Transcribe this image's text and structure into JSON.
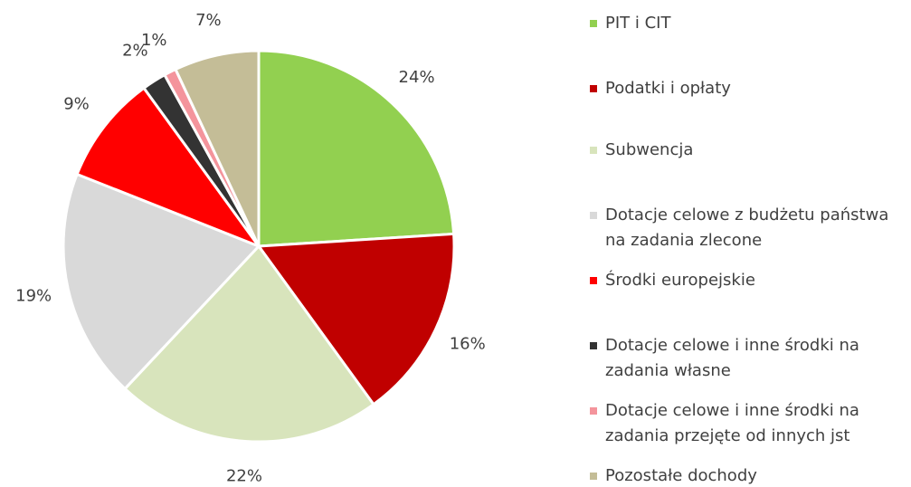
{
  "chart_data": {
    "type": "pie",
    "categories": [
      "PIT i CIT",
      "Podatki i opłaty",
      "Subwencja",
      "Dotacje celowe z budżetu państwa na zadania zlecone",
      "Środki europejskie",
      "Dotacje celowe i inne środki na zadania własne",
      "Dotacje celowe i inne środki na zadania przejęte od innych jst",
      "Pozostałe dochody"
    ],
    "values": [
      24,
      16,
      22,
      19,
      9,
      2,
      1,
      7
    ],
    "value_labels": [
      "24%",
      "16%",
      "22%",
      "19%",
      "9%",
      "2%",
      "1%",
      "7%"
    ],
    "colors": [
      "#92d050",
      "#c00000",
      "#d8e4bc",
      "#d9d9d9",
      "#ff0000",
      "#333333",
      "#f4949c",
      "#c4bd97"
    ],
    "legend": "right"
  }
}
